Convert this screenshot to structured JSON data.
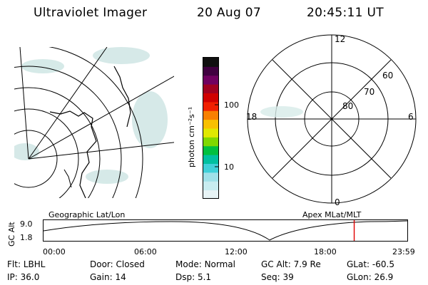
{
  "header": {
    "instrument": "Ultraviolet Imager",
    "date": "20 Aug 07",
    "time": "20:45:11 UT"
  },
  "colorbar": {
    "unit_label": "photon cm⁻²s⁻¹",
    "tick_100": "100",
    "tick_10": "10",
    "colors": [
      "#e8f4f6",
      "#c8ecf0",
      "#a0e0e8",
      "#40d0d8",
      "#00c0a0",
      "#00c040",
      "#80d800",
      "#e0e800",
      "#f8c000",
      "#f88000",
      "#f02000",
      "#d00000",
      "#a00020",
      "#700060",
      "#400040",
      "#101010"
    ]
  },
  "polar_plot": {
    "labels": {
      "top": "12",
      "bottom": "0",
      "left": "18",
      "right": "6"
    },
    "ring_labels": [
      "60",
      "70",
      "80"
    ]
  },
  "altitude_plot": {
    "y_axis_title": "GC Alt",
    "y_max": "9.0",
    "y_min": "1.8",
    "left_caption": "Geographic Lat/Lon",
    "right_caption": "Apex MLat/MLT",
    "x_ticks": [
      "00:00",
      "06:00",
      "12:00",
      "18:00",
      "23:59"
    ],
    "current_time_fraction": 0.854,
    "marker_color": "#e00000"
  },
  "info": {
    "filter_label": "Flt:",
    "filter_value": "LBHL",
    "door_label": "Door:",
    "door_value": "Closed",
    "mode_label": "Mode:",
    "mode_value": "Normal",
    "gcalt_label": "GC Alt:",
    "gcalt_value": "7.9 Re",
    "glat_label": "GLat:",
    "glat_value": "-60.5",
    "ip_label": "IP:",
    "ip_value": "36.0",
    "gain_label": "Gain:",
    "gain_value": "14",
    "dsp_label": "Dsp:",
    "dsp_value": "5.1",
    "seq_label": "Seq:",
    "seq_value": "39",
    "glon_label": "GLon:",
    "glon_value": "26.9"
  }
}
